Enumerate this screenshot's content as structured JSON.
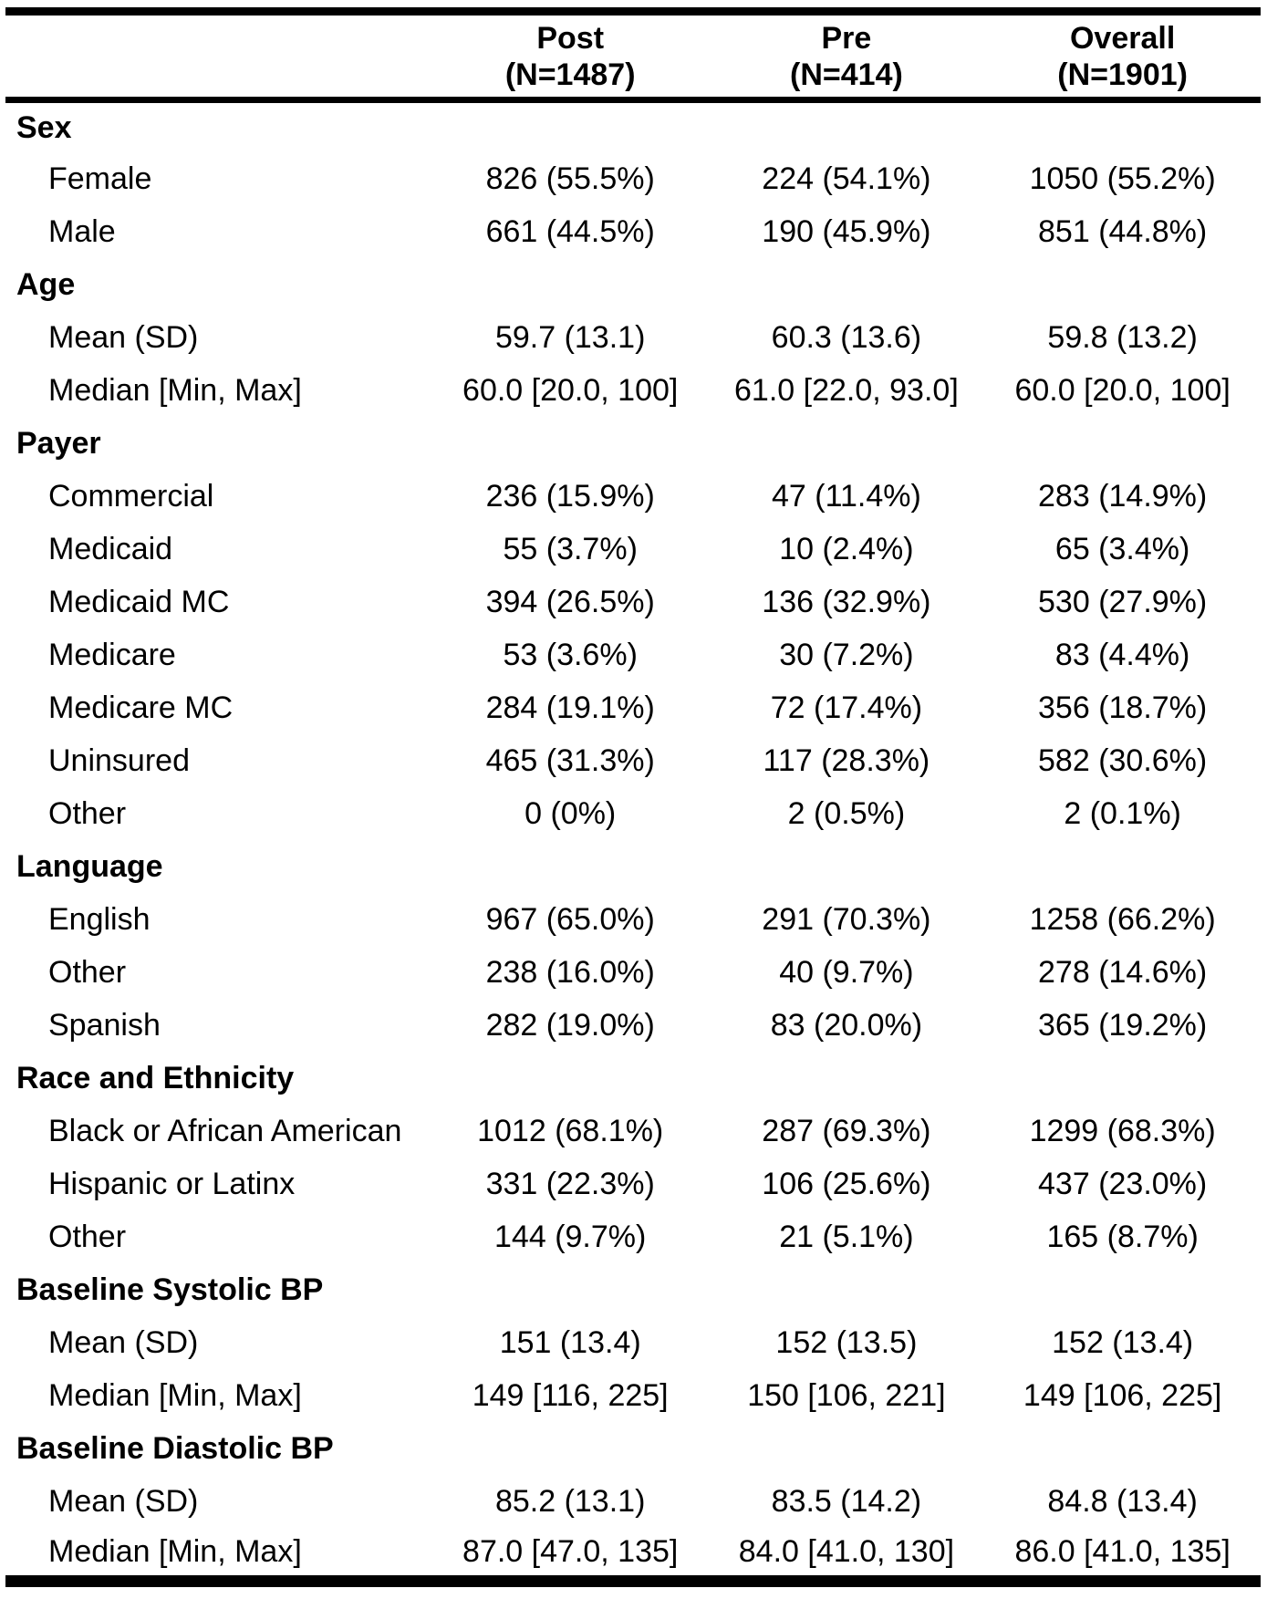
{
  "table": {
    "header": {
      "stub": "",
      "columns": [
        {
          "label": "Post",
          "n": "(N=1487)"
        },
        {
          "label": "Pre",
          "n": "(N=414)"
        },
        {
          "label": "Overall",
          "n": "(N=1901)"
        }
      ]
    },
    "sections": [
      {
        "title": "Sex",
        "rows": [
          {
            "label": "Female",
            "values": [
              "826 (55.5%)",
              "224 (54.1%)",
              "1050 (55.2%)"
            ]
          },
          {
            "label": "Male",
            "values": [
              "661 (44.5%)",
              "190 (45.9%)",
              "851 (44.8%)"
            ]
          }
        ]
      },
      {
        "title": "Age",
        "rows": [
          {
            "label": "Mean (SD)",
            "values": [
              "59.7 (13.1)",
              "60.3 (13.6)",
              "59.8 (13.2)"
            ]
          },
          {
            "label": "Median [Min, Max]",
            "values": [
              "60.0 [20.0, 100]",
              "61.0 [22.0, 93.0]",
              "60.0 [20.0, 100]"
            ]
          }
        ]
      },
      {
        "title": "Payer",
        "rows": [
          {
            "label": "Commercial",
            "values": [
              "236 (15.9%)",
              "47 (11.4%)",
              "283 (14.9%)"
            ]
          },
          {
            "label": "Medicaid",
            "values": [
              "55 (3.7%)",
              "10 (2.4%)",
              "65 (3.4%)"
            ]
          },
          {
            "label": "Medicaid MC",
            "values": [
              "394 (26.5%)",
              "136 (32.9%)",
              "530 (27.9%)"
            ]
          },
          {
            "label": "Medicare",
            "values": [
              "53 (3.6%)",
              "30 (7.2%)",
              "83 (4.4%)"
            ]
          },
          {
            "label": "Medicare MC",
            "values": [
              "284 (19.1%)",
              "72 (17.4%)",
              "356 (18.7%)"
            ]
          },
          {
            "label": "Uninsured",
            "values": [
              "465 (31.3%)",
              "117 (28.3%)",
              "582 (30.6%)"
            ]
          },
          {
            "label": "Other",
            "values": [
              "0 (0%)",
              "2 (0.5%)",
              "2 (0.1%)"
            ]
          }
        ]
      },
      {
        "title": "Language",
        "rows": [
          {
            "label": "English",
            "values": [
              "967 (65.0%)",
              "291 (70.3%)",
              "1258 (66.2%)"
            ]
          },
          {
            "label": "Other",
            "values": [
              "238 (16.0%)",
              "40 (9.7%)",
              "278 (14.6%)"
            ]
          },
          {
            "label": "Spanish",
            "values": [
              "282 (19.0%)",
              "83 (20.0%)",
              "365 (19.2%)"
            ]
          }
        ]
      },
      {
        "title": "Race and Ethnicity",
        "rows": [
          {
            "label": "Black or African American",
            "values": [
              "1012 (68.1%)",
              "287 (69.3%)",
              "1299 (68.3%)"
            ]
          },
          {
            "label": "Hispanic or Latinx",
            "values": [
              "331 (22.3%)",
              "106 (25.6%)",
              "437 (23.0%)"
            ]
          },
          {
            "label": "Other",
            "values": [
              "144 (9.7%)",
              "21 (5.1%)",
              "165 (8.7%)"
            ]
          }
        ]
      },
      {
        "title": "Baseline Systolic BP",
        "rows": [
          {
            "label": "Mean (SD)",
            "values": [
              "151 (13.4)",
              "152 (13.5)",
              "152 (13.4)"
            ]
          },
          {
            "label": "Median [Min, Max]",
            "values": [
              "149 [116, 225]",
              "150 [106, 221]",
              "149 [106, 225]"
            ]
          }
        ]
      },
      {
        "title": "Baseline Diastolic BP",
        "rows": [
          {
            "label": "Mean (SD)",
            "values": [
              "85.2 (13.1)",
              "83.5 (14.2)",
              "84.8 (13.4)"
            ]
          },
          {
            "label": "Median [Min, Max]",
            "values": [
              "87.0 [47.0, 135]",
              "84.0 [41.0, 130]",
              "86.0 [41.0, 135]"
            ]
          }
        ]
      }
    ]
  }
}
